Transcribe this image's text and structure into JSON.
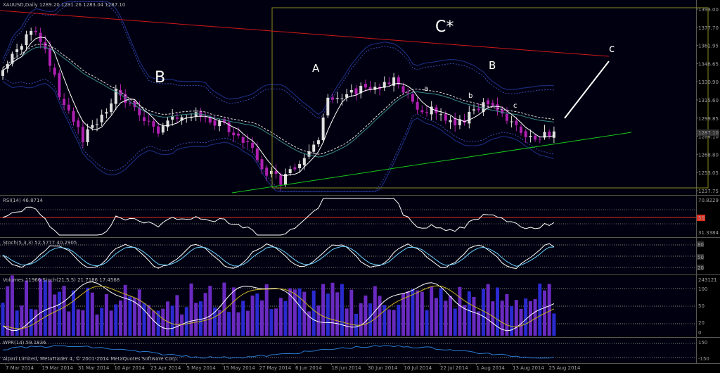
{
  "colors": {
    "background": "#000000",
    "plot_bg": "#000010",
    "candle_up": "#e0e0e0",
    "candle_down": "#b020b0",
    "resistance": "#d01818",
    "support": "#18c818",
    "box": "#8a8a20",
    "bollinger": "#1a2a7a",
    "ma_fast": "#ffffff",
    "ma_slow": "#3a8a8a",
    "rsi_line": "#ffffff",
    "rsi_level": "#e03020",
    "stoch_main": "#6ad0ff",
    "volume_bar": "#6a2ac0",
    "volume_bar_alt": "#2a2ad0",
    "cci_line": "#2a7ad0"
  },
  "main": {
    "title": "XAUUSD,Daily  1289.20 1291.26 1283.04 1287.10",
    "price_tag": "1287.10",
    "price_axis": [
      "1393.00",
      "1377.70",
      "1361.95",
      "1346.65",
      "1330.90",
      "1315.60",
      "1299.85",
      "1284.10",
      "1268.80",
      "1253.05",
      "1237.75"
    ],
    "labels": {
      "B_left": "B",
      "A": "A",
      "C_star": "C*",
      "B_right": "B",
      "c_big": "c",
      "a_small": "a",
      "b_small": "b",
      "c_small": "c"
    }
  },
  "rsi": {
    "title": "RSI(14) 46.8714",
    "axis": [
      "70.8229",
      "31.3384"
    ],
    "level_tag": "50"
  },
  "stoch1": {
    "title": "Stoch(5,3,3) 52.5777 40.2905",
    "axis_tags": [
      "80",
      "50",
      "20"
    ]
  },
  "volume": {
    "title": "Volumes 11966   Stoch(21,5,5) 21.7186 17.4568",
    "axis": [
      "243121",
      "100",
      "50",
      "20",
      "0"
    ]
  },
  "cci": {
    "title": "WPR(14) 59.1836",
    "axis": [
      "150",
      "-150"
    ]
  },
  "x_axis": [
    "7 Mar 2014",
    "19 Mar 2014",
    "31 Mar 2014",
    "10 Apr 2014",
    "23 Apr 2014",
    "5 May 2014",
    "15 May 2014",
    "27 May 2014",
    "6 Jun 2014",
    "18 Jun 2014",
    "30 Jun 2014",
    "10 Jul 2014",
    "22 Jul 2014",
    "1 Aug 2014",
    "13 Aug 2014",
    "25 Aug 2014"
  ],
  "watermark": "Alpari Limited, MetaTrader 4, © 2001-2014 MetaQuotes Software Corp."
}
